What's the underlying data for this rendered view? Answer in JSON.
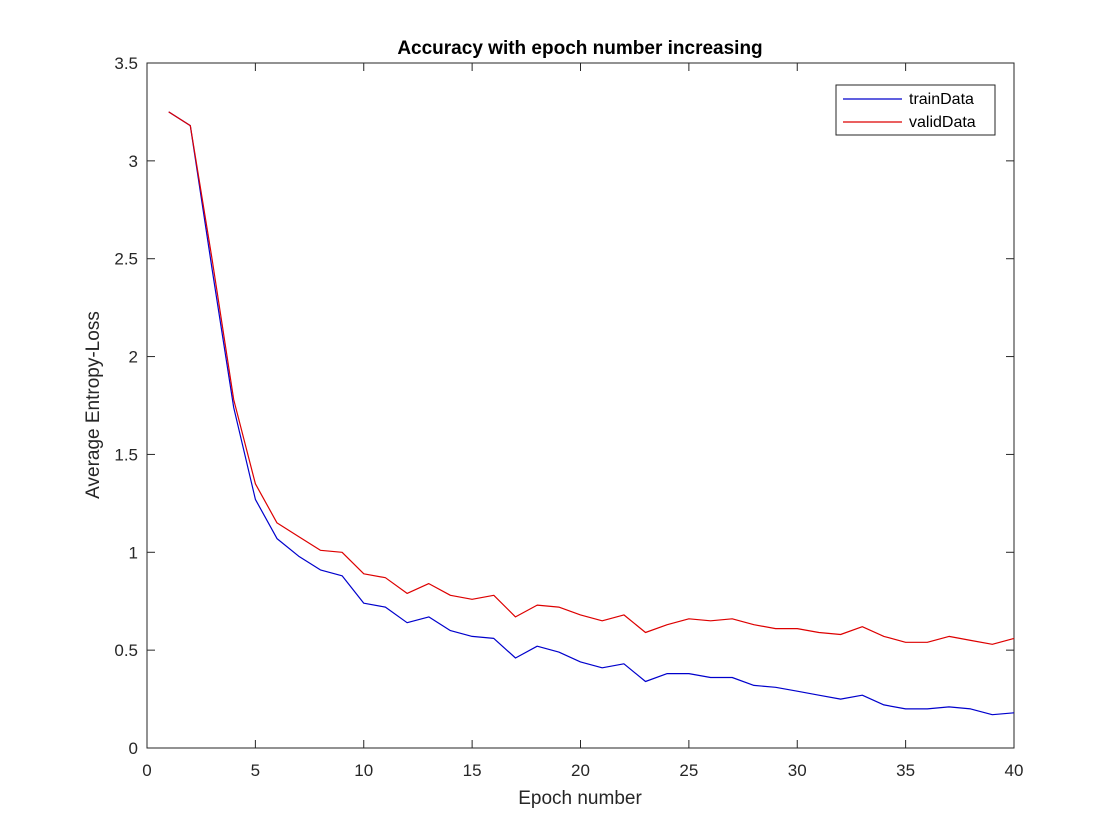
{
  "chart_data": {
    "type": "line",
    "title": "Accuracy with epoch number increasing",
    "xlabel": "Epoch number",
    "ylabel": "Average Entropy-Loss",
    "xlim": [
      0,
      40
    ],
    "ylim": [
      0,
      3.5
    ],
    "xticks": [
      0,
      5,
      10,
      15,
      20,
      25,
      30,
      35,
      40
    ],
    "yticks": [
      0,
      0.5,
      1,
      1.5,
      2,
      2.5,
      3,
      3.5
    ],
    "ytick_labels": [
      "0",
      "0.5",
      "1",
      "1.5",
      "2",
      "2.5",
      "3",
      "3.5"
    ],
    "grid": false,
    "legend_position": "top-right",
    "x": [
      1,
      2,
      3,
      4,
      5,
      6,
      7,
      8,
      9,
      10,
      11,
      12,
      13,
      14,
      15,
      16,
      17,
      18,
      19,
      20,
      21,
      22,
      23,
      24,
      25,
      26,
      27,
      28,
      29,
      30,
      31,
      32,
      33,
      34,
      35,
      36,
      37,
      38,
      39,
      40
    ],
    "series": [
      {
        "name": "trainData",
        "color": "#0000cc",
        "values": [
          3.25,
          3.18,
          2.45,
          1.74,
          1.27,
          1.07,
          0.98,
          0.91,
          0.88,
          0.74,
          0.72,
          0.64,
          0.67,
          0.6,
          0.57,
          0.56,
          0.46,
          0.52,
          0.49,
          0.44,
          0.41,
          0.43,
          0.34,
          0.38,
          0.38,
          0.36,
          0.36,
          0.32,
          0.31,
          0.29,
          0.27,
          0.25,
          0.27,
          0.22,
          0.2,
          0.2,
          0.21,
          0.2,
          0.17,
          0.18
        ]
      },
      {
        "name": "validData",
        "color": "#dd0000",
        "values": [
          3.25,
          3.18,
          2.5,
          1.78,
          1.35,
          1.15,
          1.08,
          1.01,
          1.0,
          0.89,
          0.87,
          0.79,
          0.84,
          0.78,
          0.76,
          0.78,
          0.67,
          0.73,
          0.72,
          0.68,
          0.65,
          0.68,
          0.59,
          0.63,
          0.66,
          0.65,
          0.66,
          0.63,
          0.61,
          0.61,
          0.59,
          0.58,
          0.62,
          0.57,
          0.54,
          0.54,
          0.57,
          0.55,
          0.53,
          0.56
        ]
      }
    ]
  }
}
